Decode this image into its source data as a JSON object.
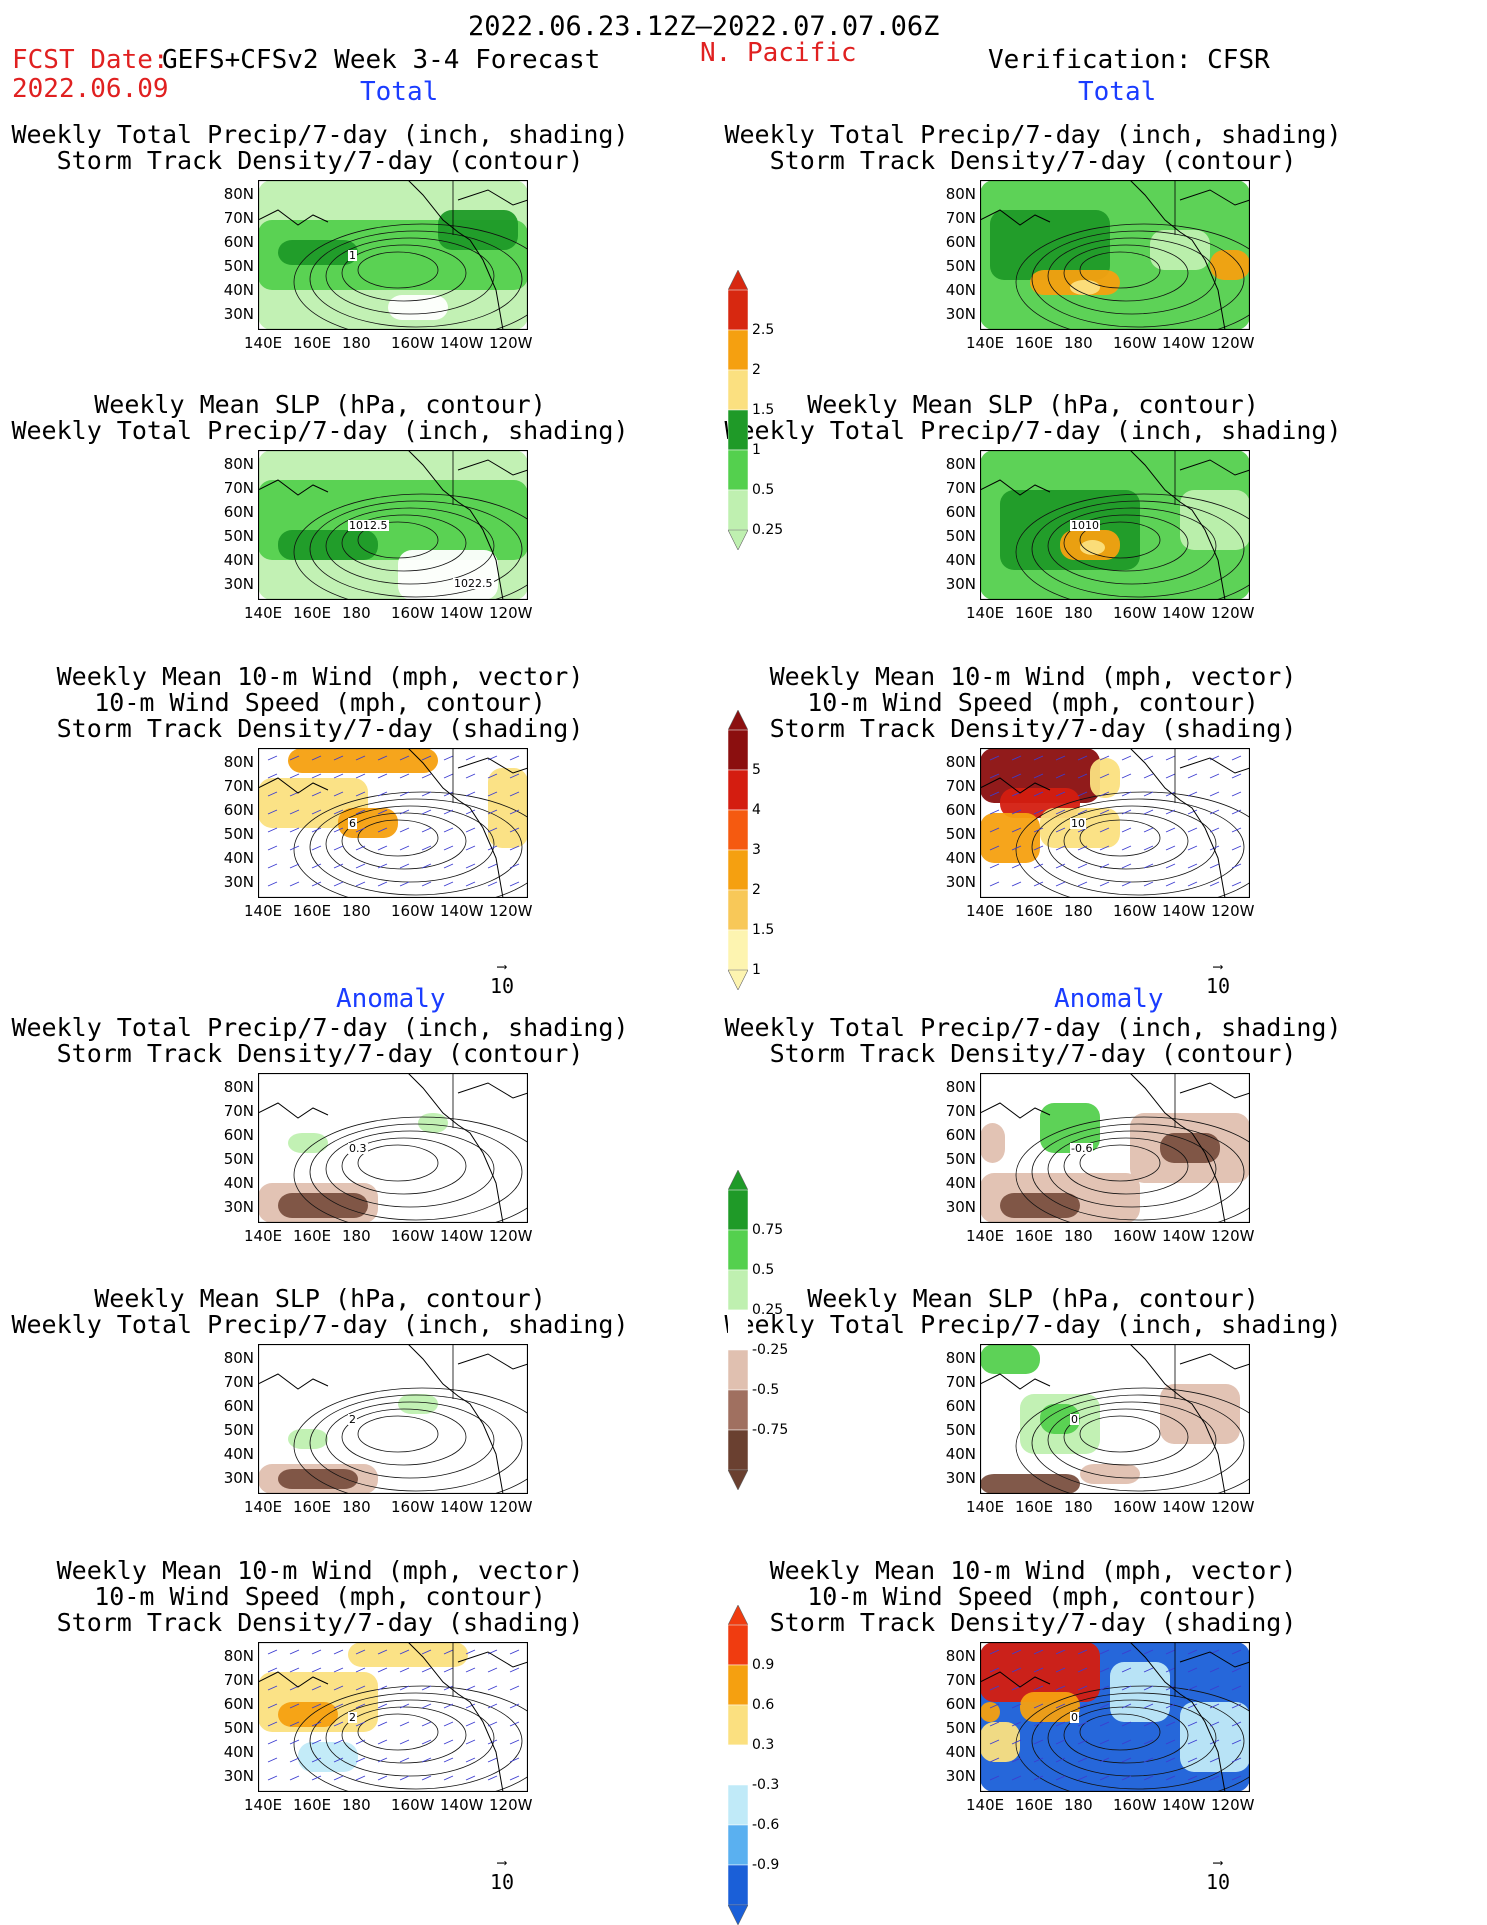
{
  "header": {
    "date_range": "2022.06.23.12Z–2022.07.07.06Z",
    "fcst_label": "FCST Date:",
    "fcst_source": "GEFS+CFSv2 Week 3-4 Forecast",
    "fcst_date": "2022.06.09",
    "region": "N. Pacific",
    "verification": "Verification: CFSR"
  },
  "sections": {
    "left_total": "Total",
    "right_total": "Total",
    "left_anomaly": "Anomaly",
    "right_anomaly": "Anomaly"
  },
  "panels": [
    {
      "id": "l1",
      "title1": "Weekly Total Precip/7-day (inch, shading)",
      "title2": "Storm Track Density/7-day (contour)",
      "title3": "",
      "contour_label": "1"
    },
    {
      "id": "r1",
      "title1": "Weekly Total Precip/7-day (inch, shading)",
      "title2": "Storm Track Density/7-day (contour)",
      "title3": "",
      "contour_label": ""
    },
    {
      "id": "l2",
      "title1": "Weekly Mean SLP (hPa, contour)",
      "title2": "Weekly Total Precip/7-day (inch, shading)",
      "title3": "",
      "contour_label": "1012.5",
      "contour_label2": "1022.5"
    },
    {
      "id": "r2",
      "title1": "Weekly Mean SLP (hPa, contour)",
      "title2": "Weekly Total Precip/7-day (inch, shading)",
      "title3": "",
      "contour_label": "1010"
    },
    {
      "id": "l3",
      "title1": "Weekly Mean 10-m Wind (mph, vector)",
      "title2": "10-m Wind Speed (mph, contour)",
      "title3": "Storm Track Density/7-day (shading)",
      "contour_label": "6"
    },
    {
      "id": "r3",
      "title1": "Weekly Mean 10-m Wind (mph, vector)",
      "title2": "10-m Wind Speed (mph, contour)",
      "title3": "Storm Track Density/7-day (shading)",
      "contour_label": "10"
    },
    {
      "id": "l4",
      "title1": "Weekly Total Precip/7-day (inch, shading)",
      "title2": "Storm Track Density/7-day (contour)",
      "title3": "",
      "contour_label": "0.3"
    },
    {
      "id": "r4",
      "title1": "Weekly Total Precip/7-day (inch, shading)",
      "title2": "Storm Track Density/7-day (contour)",
      "title3": "",
      "contour_label": "-0.6"
    },
    {
      "id": "l5",
      "title1": "Weekly Mean SLP (hPa, contour)",
      "title2": "Weekly Total Precip/7-day (inch, shading)",
      "title3": "",
      "contour_label": "2"
    },
    {
      "id": "r5",
      "title1": "Weekly Mean SLP (hPa, contour)",
      "title2": "Weekly Total Precip/7-day (inch, shading)",
      "title3": "",
      "contour_label": "0"
    },
    {
      "id": "l6",
      "title1": "Weekly Mean 10-m Wind (mph, vector)",
      "title2": "10-m Wind Speed (mph, contour)",
      "title3": "Storm Track Density/7-day (shading)",
      "contour_label": "2"
    },
    {
      "id": "r6",
      "title1": "Weekly Mean 10-m Wind (mph, vector)",
      "title2": "10-m Wind Speed (mph, contour)",
      "title3": "Storm Track Density/7-day (shading)",
      "contour_label": "0"
    }
  ],
  "lat_labels": [
    "80N",
    "70N",
    "60N",
    "50N",
    "40N",
    "30N"
  ],
  "lon_labels": [
    "140E",
    "160E",
    "180",
    "160W",
    "140W",
    "120W"
  ],
  "vector_ref": "10",
  "colorbars": [
    {
      "id": "cb1",
      "labels": [
        "2.5",
        "2",
        "1.5",
        "1",
        "0.5",
        "0.25"
      ],
      "colors": [
        "#d72810",
        "#f5a010",
        "#fbe080",
        "#1f9a28",
        "#54d04e",
        "#bff0b0"
      ]
    },
    {
      "id": "cb2",
      "labels": [
        "5",
        "4",
        "3",
        "2",
        "1.5",
        "1"
      ],
      "colors": [
        "#8b0f0f",
        "#d41d10",
        "#f55a10",
        "#f5a010",
        "#f8c858",
        "#fdf4b0"
      ]
    },
    {
      "id": "cb3",
      "labels": [
        "0.75",
        "0.5",
        "0.25",
        "-0.25",
        "-0.5",
        "-0.75"
      ],
      "colors": [
        "#1f9a28",
        "#54d04e",
        "#bff0b0",
        "#ffffff",
        "#e0c0b0",
        "#a07060",
        "#6a4030"
      ]
    },
    {
      "id": "cb4",
      "labels": [
        "0.9",
        "0.6",
        "0.3",
        "-0.3",
        "-0.6",
        "-0.9"
      ],
      "colors": [
        "#f03c10",
        "#f5a010",
        "#fbe080",
        "#ffffff",
        "#c0eaf8",
        "#5ab0f0",
        "#1a5fd8"
      ]
    }
  ],
  "colors": {
    "precip_light": "#bff0b0",
    "precip_mid": "#54d04e",
    "precip_dark": "#1f9a28",
    "orange": "#f5a010",
    "yellow": "#fbe080",
    "red": "#d41d10",
    "darkred": "#8b0f0f",
    "brown_light": "#e0c0b0",
    "brown_dark": "#7a5040",
    "blue": "#1a5fd8",
    "lightblue": "#c0eaf8",
    "vector": "#3c3cd0"
  }
}
